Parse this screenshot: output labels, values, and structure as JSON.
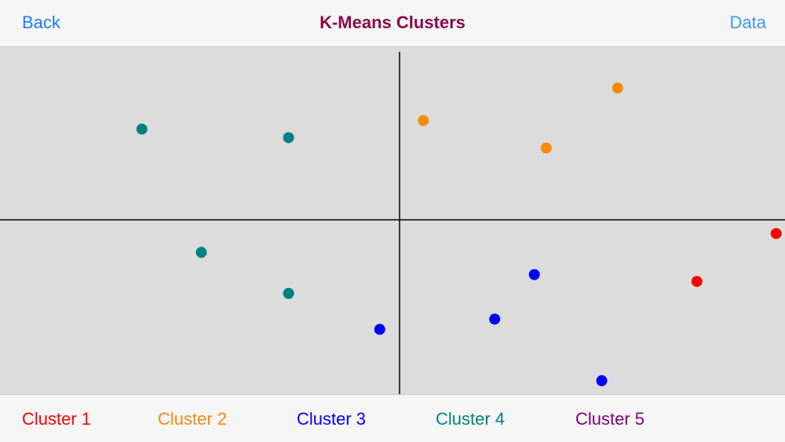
{
  "navbar": {
    "back_label": "Back",
    "title": "K-Means Clusters",
    "data_label": "Data",
    "title_color": "#8a0a4a",
    "link_color": "#157efb"
  },
  "legend": {
    "items": [
      {
        "label": "Cluster 1",
        "color": "#ff0000"
      },
      {
        "label": "Cluster 2",
        "color": "#f7890c"
      },
      {
        "label": "Cluster 3",
        "color": "#0000ff"
      },
      {
        "label": "Cluster 4",
        "color": "#008080"
      },
      {
        "label": "Cluster 5",
        "color": "#800080"
      }
    ]
  },
  "chart_data": {
    "type": "scatter",
    "title": "",
    "xlabel": "",
    "ylabel": "",
    "grid": false,
    "xlim": [
      -1,
      1
    ],
    "ylim": [
      -1,
      1
    ],
    "axes": "centered",
    "series": [
      {
        "name": "Cluster 1",
        "color": "#ff0000",
        "points": [
          [
            0.75,
            -0.36
          ],
          [
            0.95,
            -0.08
          ]
        ]
      },
      {
        "name": "Cluster 2",
        "color": "#f7890c",
        "points": [
          [
            0.06,
            0.58
          ],
          [
            0.37,
            0.42
          ],
          [
            0.55,
            0.77
          ]
        ]
      },
      {
        "name": "Cluster 3",
        "color": "#0000ff",
        "points": [
          [
            -0.05,
            -0.64
          ],
          [
            0.24,
            -0.58
          ],
          [
            0.34,
            -0.32
          ],
          [
            0.51,
            -0.94
          ]
        ]
      },
      {
        "name": "Cluster 4",
        "color": "#008080",
        "points": [
          [
            -0.65,
            0.53
          ],
          [
            -0.28,
            0.48
          ],
          [
            -0.5,
            -0.19
          ],
          [
            -0.28,
            -0.43
          ]
        ]
      },
      {
        "name": "Cluster 5",
        "color": "#800080",
        "points": []
      }
    ]
  }
}
